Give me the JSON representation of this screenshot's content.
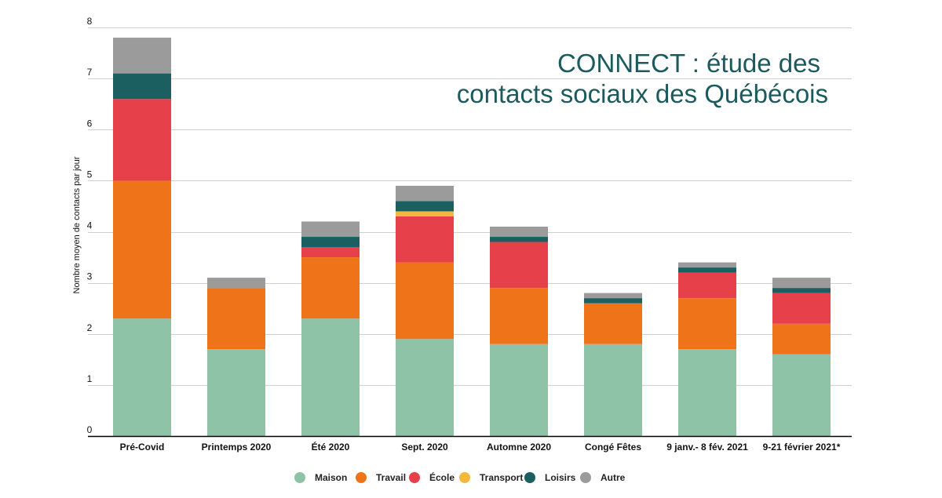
{
  "chart_data": {
    "type": "bar",
    "stacked": true,
    "title_lines": [
      "CONNECT : étude des",
      "contacts sociaux des Québécois"
    ],
    "ylabel": "Nombre moyen de contacts par jour",
    "xlabel": "",
    "ylim": [
      0,
      8
    ],
    "yticks": [
      0,
      1,
      2,
      3,
      4,
      5,
      6,
      7,
      8
    ],
    "grid": true,
    "legend_position": "bottom",
    "categories": [
      "Pré-Covid",
      "Printemps 2020",
      "Été 2020",
      "Sept. 2020",
      "Automne 2020",
      "Congé Fêtes",
      "9 janv.- 8 fév. 2021",
      "9-21 février 2021*"
    ],
    "series": [
      {
        "name": "Maison",
        "color": "#8fc3a7",
        "values": [
          2.3,
          1.7,
          2.3,
          1.9,
          1.8,
          1.8,
          1.7,
          1.6
        ]
      },
      {
        "name": "Travail",
        "color": "#ef7318",
        "values": [
          2.7,
          1.2,
          1.2,
          1.5,
          1.1,
          0.8,
          1.0,
          0.6
        ]
      },
      {
        "name": "École",
        "color": "#e6414a",
        "values": [
          1.6,
          0.0,
          0.2,
          0.9,
          0.9,
          0.0,
          0.5,
          0.6
        ]
      },
      {
        "name": "Transport",
        "color": "#f3b93f",
        "values": [
          0.0,
          0.0,
          0.0,
          0.1,
          0.0,
          0.0,
          0.0,
          0.0
        ]
      },
      {
        "name": "Loisirs",
        "color": "#1b5f60",
        "values": [
          0.5,
          0.0,
          0.2,
          0.2,
          0.1,
          0.1,
          0.1,
          0.1
        ]
      },
      {
        "name": "Autre",
        "color": "#9b9b9b",
        "values": [
          0.7,
          0.2,
          0.3,
          0.3,
          0.2,
          0.1,
          0.1,
          0.2
        ]
      }
    ]
  }
}
